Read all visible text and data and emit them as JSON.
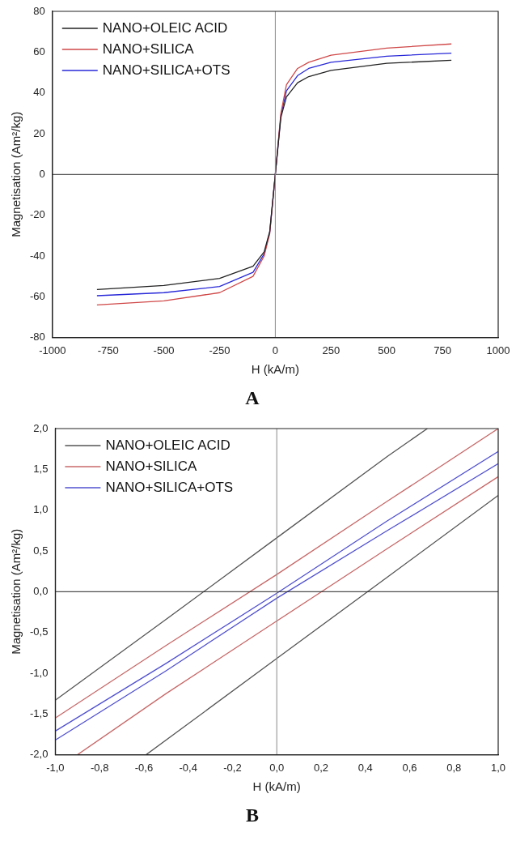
{
  "chart_data": [
    {
      "type": "line",
      "title": "A",
      "xlabel": "H (kA/m)",
      "ylabel": "Magnetisation (Am²/kg)",
      "xlim": [
        -1000,
        1000
      ],
      "xticks": [
        -1000,
        -750,
        -500,
        -250,
        0,
        250,
        500,
        750,
        1000
      ],
      "ylim": [
        -80,
        80
      ],
      "yticks": [
        -80,
        -60,
        -40,
        -20,
        0,
        20,
        40,
        60,
        80
      ],
      "grid": false,
      "legend": "top left",
      "marker": "none",
      "line_style": "solid",
      "ref_lines": [
        {
          "axis": "y",
          "value": 0,
          "color": "#333333"
        },
        {
          "axis": "x",
          "value": 0,
          "color": "#8a8a8a"
        }
      ],
      "series": [
        {
          "name": "NANO+OLEIC ACID",
          "color": "#222222",
          "x": [
            -800,
            -500,
            -250,
            -100,
            -50,
            -25,
            0,
            25,
            50,
            100,
            150,
            250,
            500,
            790
          ],
          "values": [
            -56.5,
            -54.5,
            -51,
            -45,
            -38,
            -28,
            0,
            28,
            38,
            45,
            48,
            51,
            54.5,
            56
          ]
        },
        {
          "name": "NANO+SILICA",
          "color": "#d04848",
          "x": [
            -800,
            -500,
            -250,
            -100,
            -50,
            -25,
            0,
            25,
            50,
            100,
            150,
            250,
            500,
            790
          ],
          "values": [
            -64,
            -62,
            -58,
            -50,
            -40,
            -29,
            0,
            30,
            44,
            52,
            55,
            58.5,
            62,
            64
          ]
        },
        {
          "name": "NANO+SILICA+OTS",
          "color": "#2828d8",
          "x": [
            -800,
            -500,
            -250,
            -100,
            -50,
            -25,
            0,
            25,
            50,
            100,
            150,
            250,
            500,
            790
          ],
          "values": [
            -59.5,
            -58,
            -55,
            -48,
            -39,
            -28.5,
            0,
            29,
            41,
            48.5,
            52,
            55,
            58,
            59.5
          ]
        }
      ]
    },
    {
      "type": "line",
      "title": "B",
      "xlabel": "H (kA/m)",
      "ylabel": "Magnetisation (Am²/kg)",
      "xlim": [
        -1,
        1
      ],
      "xticks": [
        {
          "value": -1,
          "label": "-1,0"
        },
        {
          "value": -0.8,
          "label": "-0,8"
        },
        {
          "value": -0.6,
          "label": "-0,6"
        },
        {
          "value": -0.4,
          "label": "-0,4"
        },
        {
          "value": -0.2,
          "label": "-0,2"
        },
        {
          "value": 0,
          "label": "0,0"
        },
        {
          "value": 0.2,
          "label": "0,2"
        },
        {
          "value": 0.4,
          "label": "0,4"
        },
        {
          "value": 0.6,
          "label": "0,6"
        },
        {
          "value": 0.8,
          "label": "0,8"
        },
        {
          "value": 1,
          "label": "1,0"
        }
      ],
      "ylim": [
        -2,
        2
      ],
      "yticks": [
        {
          "value": -2,
          "label": "-2,0"
        },
        {
          "value": -1.5,
          "label": "-1,5"
        },
        {
          "value": -1,
          "label": "-1,0"
        },
        {
          "value": -0.5,
          "label": "-0,5"
        },
        {
          "value": 0,
          "label": "0,0"
        },
        {
          "value": 0.5,
          "label": "0,5"
        },
        {
          "value": 1,
          "label": "1,0"
        },
        {
          "value": 1.5,
          "label": "1,5"
        },
        {
          "value": 2,
          "label": "2,0"
        }
      ],
      "grid": false,
      "legend": "top left",
      "marker": "none",
      "line_style": "solid",
      "ref_lines": [
        {
          "axis": "y",
          "value": 0,
          "color": "#222222"
        },
        {
          "axis": "x",
          "value": 0,
          "color": "#8a8a8a"
        }
      ],
      "series": [
        {
          "name": "NANO+OLEIC ACID",
          "color": "#555555",
          "x": [
            0.68,
            0.5,
            0,
            -0.5,
            -1,
            null,
            -0.59,
            0,
            0.5,
            1
          ],
          "values": [
            2,
            1.66,
            0.66,
            -0.34,
            -1.33,
            null,
            -2,
            -0.82,
            0.18,
            1.18
          ]
        },
        {
          "name": "NANO+SILICA",
          "color": "#c86868",
          "x": [
            1,
            0.5,
            0,
            -0.5,
            -1,
            null,
            -0.9,
            -0.5,
            0,
            0.5,
            1
          ],
          "values": [
            2,
            1.11,
            0.21,
            -0.66,
            -1.55,
            null,
            -2,
            -1.25,
            -0.36,
            0.53,
            1.41
          ]
        },
        {
          "name": "NANO+SILICA+OTS",
          "color": "#5050d0",
          "x": [
            1,
            0.5,
            0,
            -0.5,
            -1,
            null,
            -1,
            -0.5,
            0,
            0.5,
            1
          ],
          "values": [
            1.72,
            0.87,
            -0.02,
            -0.88,
            -1.71,
            null,
            -1.82,
            -0.97,
            -0.08,
            0.75,
            1.57
          ]
        }
      ]
    }
  ]
}
